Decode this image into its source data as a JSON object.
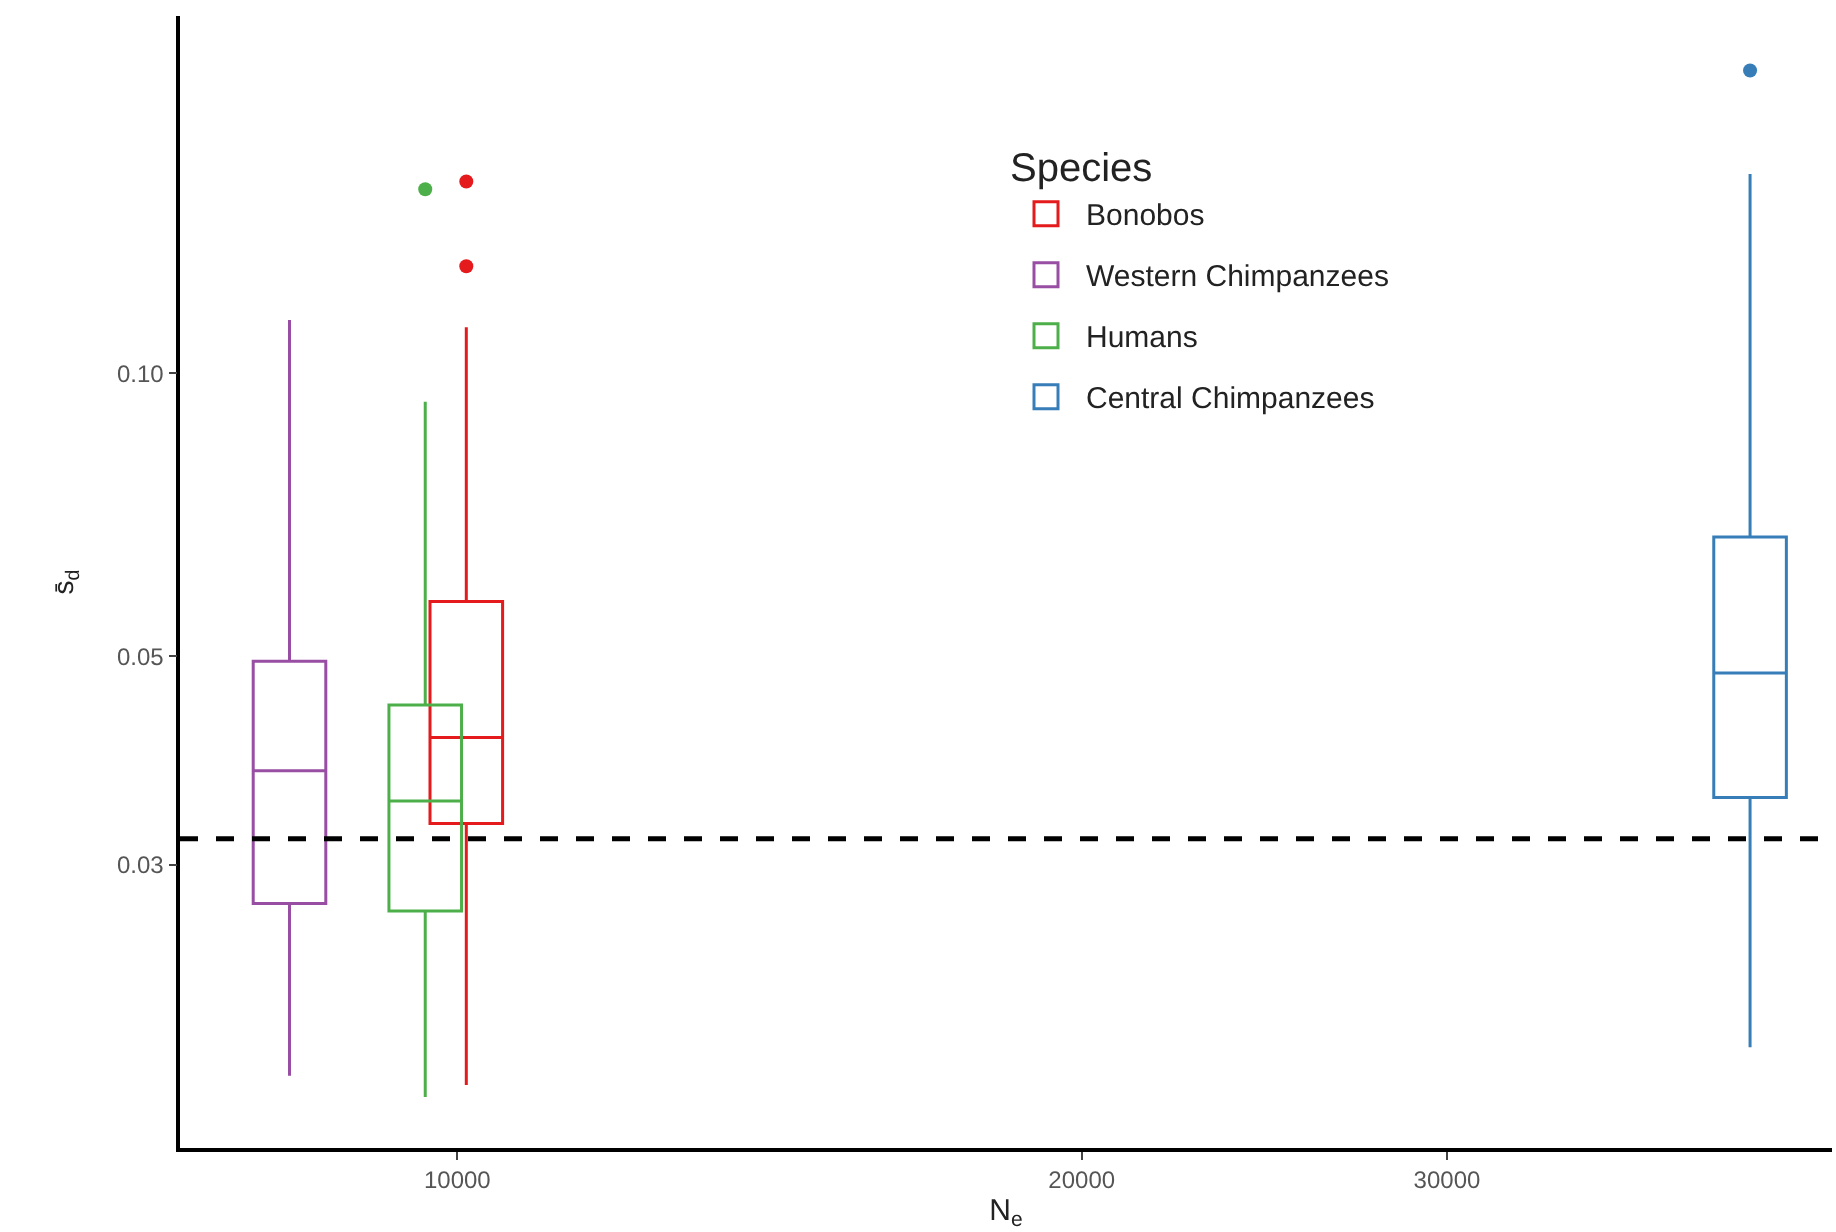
{
  "chart_data": {
    "type": "box",
    "xlabel": "N$_{e}$",
    "ylabel": "s̄$_{d}$",
    "legend_title": "Species",
    "legend": "top right",
    "grid": false,
    "log": "xy",
    "xlim": [
      7350,
      46000
    ],
    "xticks": [
      10000,
      20000,
      30000
    ],
    "ylim": [
      0.015,
      0.24
    ],
    "yticks": [
      {
        "value": 0.03,
        "label": "0.03"
      },
      {
        "value": 0.05,
        "label": "0.05"
      },
      {
        "value": 0.1,
        "label": "0.10"
      }
    ],
    "series": [
      {
        "name": "Bonobos",
        "color": "#e41a1c",
        "x": [
          10100
        ],
        "boxes": [
          {
            "low": 0.0175,
            "q1": 0.0332,
            "median": 0.041,
            "q3": 0.0572,
            "high": 0.112,
            "outliers": [
              0.16,
              0.13
            ]
          }
        ]
      },
      {
        "name": "Western Chimpanzees",
        "color": "#984ea3",
        "x": [
          8300
        ],
        "boxes": [
          {
            "low": 0.0179,
            "q1": 0.0273,
            "median": 0.0378,
            "q3": 0.0494,
            "high": 0.114
          }
        ]
      },
      {
        "name": "Humans",
        "color": "#4daf4a",
        "x": [
          9650
        ],
        "boxes": [
          {
            "low": 0.017,
            "q1": 0.0268,
            "median": 0.0351,
            "q3": 0.0444,
            "high": 0.0933,
            "outliers": [
              0.157
            ]
          }
        ]
      },
      {
        "name": "Central Chimpanzees",
        "color": "#377eb8",
        "x": [
          42000
        ],
        "boxes": [
          {
            "low": 0.0192,
            "q1": 0.0354,
            "median": 0.048,
            "q3": 0.067,
            "high": 0.163,
            "outliers": [
              0.21
            ]
          }
        ]
      }
    ],
    "ref_lines": [
      {
        "axis": "y",
        "value": 0.032,
        "color": "#000000",
        "line_style": "dashed"
      }
    ]
  }
}
